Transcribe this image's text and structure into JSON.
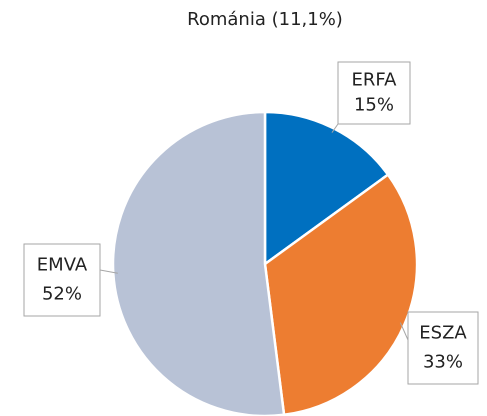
{
  "chart_data": {
    "type": "pie",
    "title": "Románia (11,1%)",
    "categories": [
      "ERFA",
      "ESZA",
      "EMVA"
    ],
    "values": [
      15,
      33,
      52
    ],
    "value_labels": [
      "15%",
      "33%",
      "52%"
    ],
    "colors": [
      "#0070c0",
      "#ed7d31",
      "#b8c2d6"
    ]
  }
}
